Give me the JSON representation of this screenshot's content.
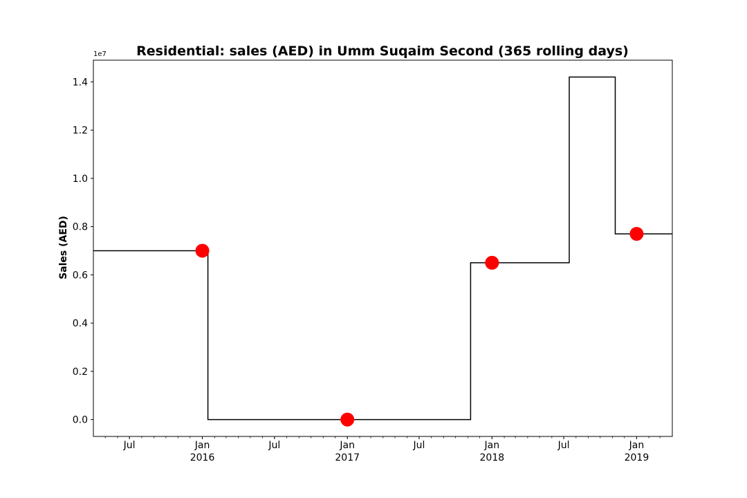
{
  "chart_data": {
    "type": "line",
    "title": "Residential: sales (AED) in Umm Suqaim Second (365 rolling days)",
    "xlabel": "",
    "ylabel": "Sales (AED)",
    "y_offset_label": "1e7",
    "ylim": [
      -0.07,
      1.49
    ],
    "xlim": [
      "2015-04-01",
      "2019-04-01"
    ],
    "y_ticks": [
      "0.0",
      "0.2",
      "0.4",
      "0.6",
      "0.8",
      "1.0",
      "1.2",
      "1.4"
    ],
    "x_ticks": [
      {
        "date": "2015-07-01",
        "label": "Jul",
        "year": ""
      },
      {
        "date": "2016-01-01",
        "label": "Jan",
        "year": "2016"
      },
      {
        "date": "2016-07-01",
        "label": "Jul",
        "year": ""
      },
      {
        "date": "2017-01-01",
        "label": "Jan",
        "year": "2017"
      },
      {
        "date": "2017-07-01",
        "label": "Jul",
        "year": ""
      },
      {
        "date": "2018-01-01",
        "label": "Jan",
        "year": "2018"
      },
      {
        "date": "2018-07-01",
        "label": "Jul",
        "year": ""
      },
      {
        "date": "2019-01-01",
        "label": "Jan",
        "year": "2019"
      }
    ],
    "grid": false,
    "series": [
      {
        "style": "step",
        "color": "#000000",
        "x": [
          "2015-04-01",
          "2016-01-15",
          "2016-01-15",
          "2017-11-08",
          "2017-11-08",
          "2018-07-15",
          "2018-07-15",
          "2018-11-08",
          "2018-11-08",
          "2019-04-01"
        ],
        "y": [
          0.7,
          0.7,
          0.0,
          0.0,
          0.65,
          0.65,
          1.42,
          1.42,
          0.77,
          0.77
        ]
      },
      {
        "style": "markers",
        "color": "#ff0000",
        "x": [
          "2016-01-01",
          "2017-01-01",
          "2018-01-01",
          "2019-01-01"
        ],
        "y": [
          0.7,
          0.0,
          0.65,
          0.77
        ]
      }
    ]
  }
}
